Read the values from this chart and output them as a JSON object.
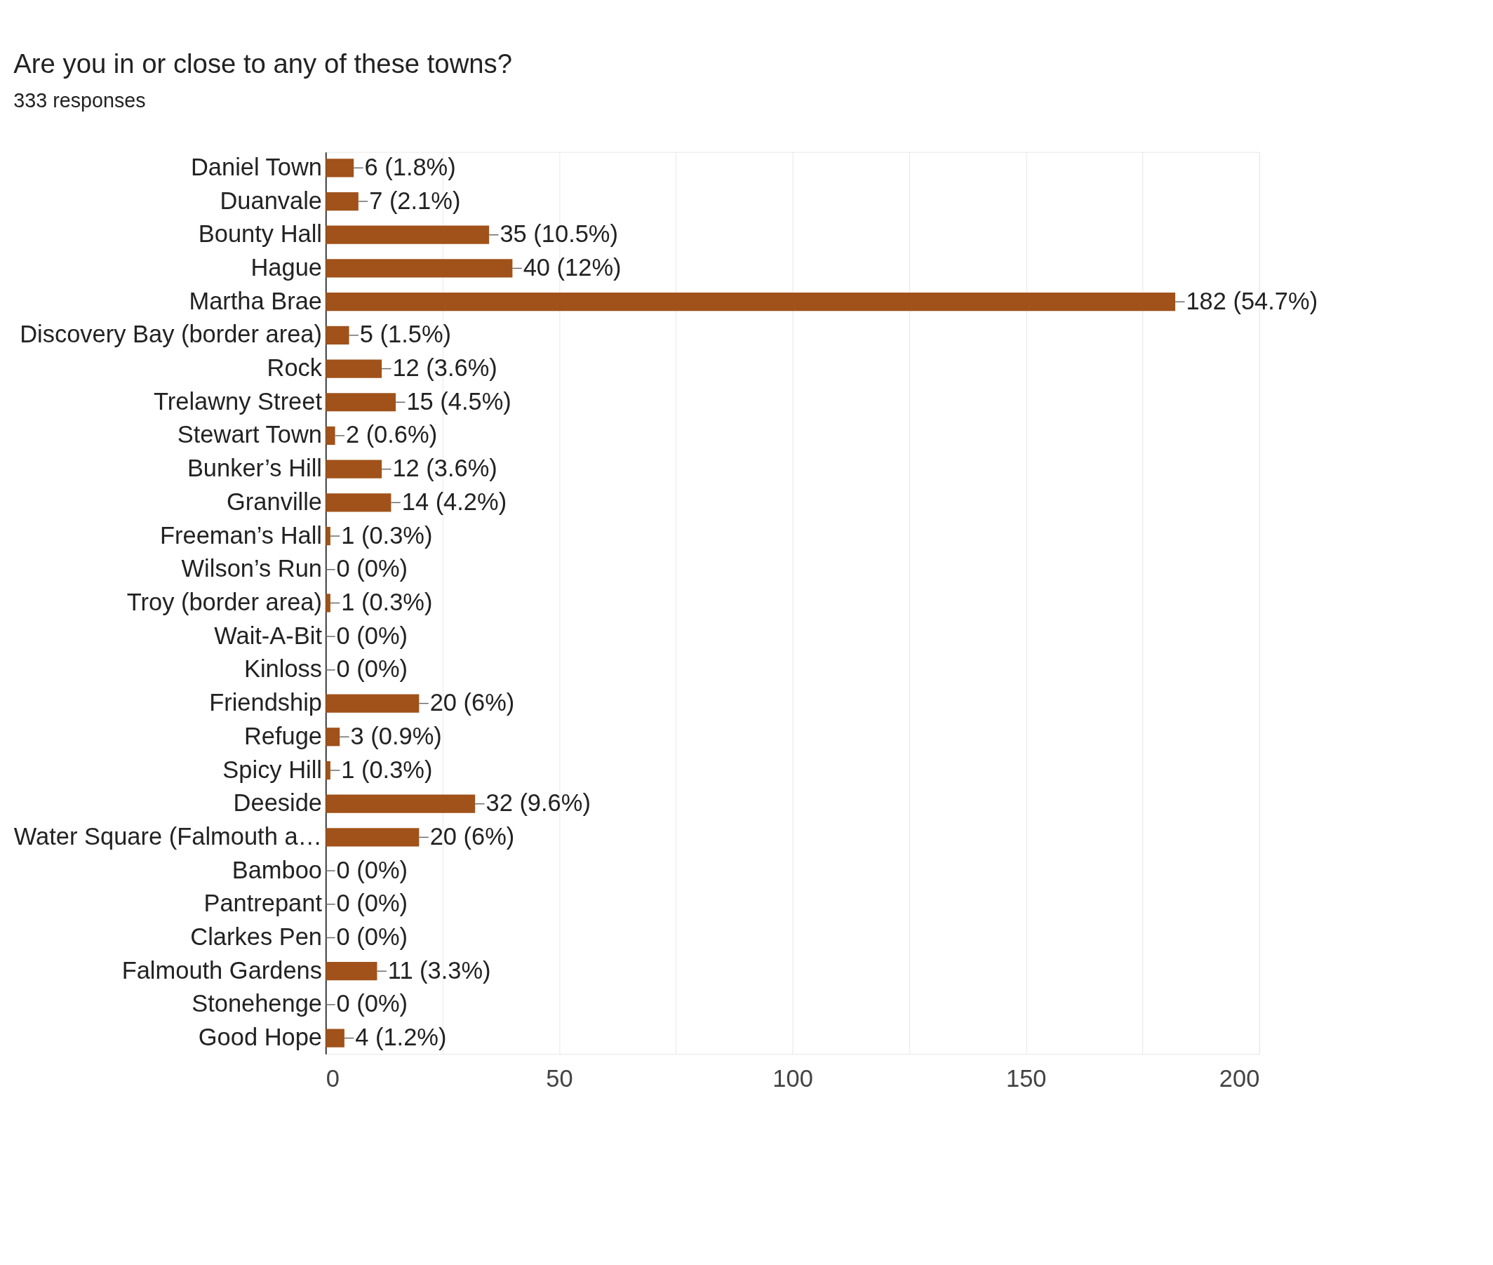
{
  "chart_data": {
    "type": "bar",
    "orientation": "horizontal",
    "title": "Are you in or close to any of these towns?",
    "subtitle": "333 responses",
    "categories": [
      "Daniel Town",
      "Duanvale",
      "Bounty Hall",
      "Hague",
      "Martha Brae",
      "Discovery Bay (border area)",
      "Rock",
      "Trelawny Street",
      "Stewart Town",
      "Bunker’s Hill",
      "Granville",
      "Freeman’s Hall",
      "Wilson’s Run",
      "Troy (border area)",
      "Wait-A-Bit",
      "Kinloss",
      "Friendship",
      "Refuge",
      "Spicy Hill",
      "Deeside",
      "Water Square (Falmouth a…",
      "Bamboo",
      "Pantrepant",
      "Clarkes Pen",
      "Falmouth Gardens",
      "Stonehenge",
      "Good Hope"
    ],
    "values": [
      6,
      7,
      35,
      40,
      182,
      5,
      12,
      15,
      2,
      12,
      14,
      1,
      0,
      1,
      0,
      0,
      20,
      3,
      1,
      32,
      20,
      0,
      0,
      0,
      11,
      0,
      4
    ],
    "value_labels": [
      "6 (1.8%)",
      "7 (2.1%)",
      "35 (10.5%)",
      "40 (12%)",
      "182 (54.7%)",
      "5 (1.5%)",
      "12 (3.6%)",
      "15 (4.5%)",
      "2 (0.6%)",
      "12 (3.6%)",
      "14 (4.2%)",
      "1 (0.3%)",
      "0 (0%)",
      "1 (0.3%)",
      "0 (0%)",
      "0 (0%)",
      "20 (6%)",
      "3 (0.9%)",
      "1 (0.3%)",
      "32 (9.6%)",
      "20 (6%)",
      "0 (0%)",
      "0 (0%)",
      "0 (0%)",
      "11 (3.3%)",
      "0 (0%)",
      "4 (1.2%)"
    ],
    "color": "#a0521a",
    "xlim": [
      0,
      200
    ],
    "xticks": [
      0,
      {
        "value": 25,
        "label": null
      },
      50,
      {
        "value": 75,
        "label": null
      },
      100,
      {
        "value": 125,
        "label": null
      },
      150,
      {
        "value": 175,
        "label": null
      },
      200
    ],
    "grid": "x"
  }
}
